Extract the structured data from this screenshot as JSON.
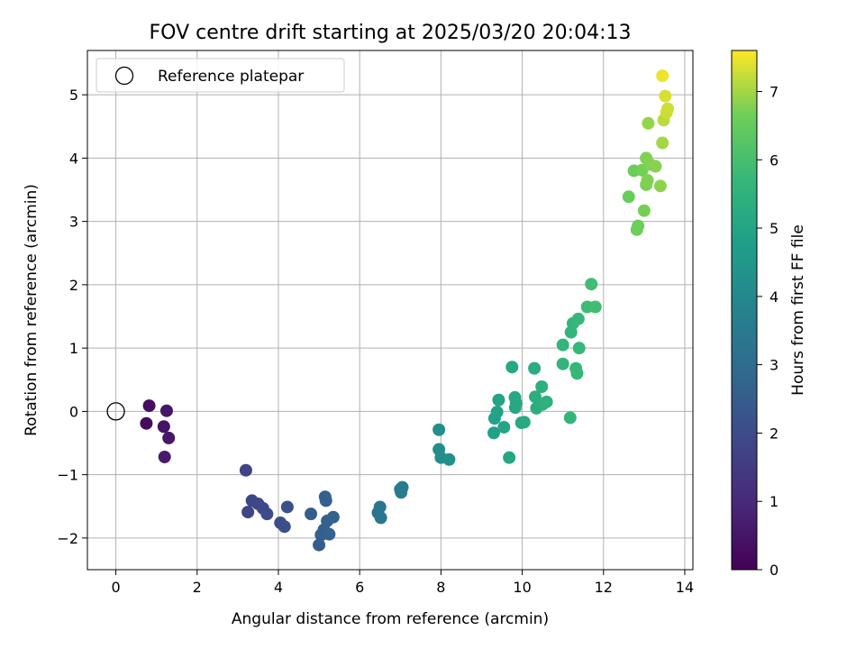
{
  "chart_data": {
    "type": "scatter",
    "title": "FOV centre drift starting at 2025/03/20 20:04:13",
    "xlabel": "Angular distance from reference (arcmin)",
    "ylabel": "Rotation from reference (arcmin)",
    "xlim": [
      -0.7,
      14.2
    ],
    "ylim": [
      -2.5,
      5.7
    ],
    "xticks": [
      "0",
      "2",
      "4",
      "6",
      "8",
      "10",
      "12",
      "14"
    ],
    "yticks": [
      "−2",
      "−1",
      "0",
      "1",
      "2",
      "3",
      "4",
      "5"
    ],
    "grid": true,
    "legend": {
      "placement": "top-left",
      "entries": [
        "Reference platepar"
      ]
    },
    "reference_point": {
      "x": 0,
      "y": 0
    },
    "colorbar": {
      "label": "Hours from first FF file",
      "range": [
        0,
        7.6
      ],
      "ticks": [
        "0",
        "1",
        "2",
        "3",
        "4",
        "5",
        "6",
        "7"
      ],
      "colormap": "viridis"
    },
    "points": [
      {
        "x": 0.82,
        "y": 0.09,
        "h": 0.3
      },
      {
        "x": 0.75,
        "y": -0.19,
        "h": 0.25
      },
      {
        "x": 1.25,
        "y": 0.01,
        "h": 0.5
      },
      {
        "x": 1.18,
        "y": -0.24,
        "h": 0.45
      },
      {
        "x": 1.3,
        "y": -0.42,
        "h": 0.55
      },
      {
        "x": 1.2,
        "y": -0.72,
        "h": 0.6
      },
      {
        "x": 3.2,
        "y": -0.93,
        "h": 1.7
      },
      {
        "x": 3.35,
        "y": -1.41,
        "h": 1.8
      },
      {
        "x": 3.5,
        "y": -1.46,
        "h": 1.85
      },
      {
        "x": 3.62,
        "y": -1.53,
        "h": 1.9
      },
      {
        "x": 3.25,
        "y": -1.59,
        "h": 1.75
      },
      {
        "x": 3.72,
        "y": -1.62,
        "h": 1.95
      },
      {
        "x": 4.05,
        "y": -1.76,
        "h": 2.05
      },
      {
        "x": 4.15,
        "y": -1.82,
        "h": 2.1
      },
      {
        "x": 4.22,
        "y": -1.51,
        "h": 2.15
      },
      {
        "x": 4.8,
        "y": -1.62,
        "h": 2.5
      },
      {
        "x": 5.15,
        "y": -1.35,
        "h": 2.6
      },
      {
        "x": 5.17,
        "y": -1.41,
        "h": 2.62
      },
      {
        "x": 5.35,
        "y": -1.67,
        "h": 2.7
      },
      {
        "x": 5.2,
        "y": -1.73,
        "h": 2.65
      },
      {
        "x": 5.12,
        "y": -1.87,
        "h": 2.6
      },
      {
        "x": 5.05,
        "y": -1.95,
        "h": 2.58
      },
      {
        "x": 5.25,
        "y": -1.94,
        "h": 2.66
      },
      {
        "x": 5.0,
        "y": -2.11,
        "h": 2.55
      },
      {
        "x": 6.45,
        "y": -1.6,
        "h": 3.3
      },
      {
        "x": 6.5,
        "y": -1.51,
        "h": 3.32
      },
      {
        "x": 6.52,
        "y": -1.68,
        "h": 3.35
      },
      {
        "x": 7.0,
        "y": -1.23,
        "h": 3.55
      },
      {
        "x": 7.05,
        "y": -1.2,
        "h": 3.57
      },
      {
        "x": 7.02,
        "y": -1.28,
        "h": 3.56
      },
      {
        "x": 7.95,
        "y": -0.29,
        "h": 4.25
      },
      {
        "x": 7.95,
        "y": -0.6,
        "h": 4.2
      },
      {
        "x": 8.0,
        "y": -0.73,
        "h": 4.22
      },
      {
        "x": 8.2,
        "y": -0.76,
        "h": 4.3
      },
      {
        "x": 9.3,
        "y": -0.34,
        "h": 4.85
      },
      {
        "x": 9.32,
        "y": -0.11,
        "h": 4.9
      },
      {
        "x": 9.38,
        "y": -0.01,
        "h": 4.92
      },
      {
        "x": 9.42,
        "y": 0.18,
        "h": 4.95
      },
      {
        "x": 9.55,
        "y": -0.25,
        "h": 5.0
      },
      {
        "x": 9.68,
        "y": -0.73,
        "h": 5.05
      },
      {
        "x": 9.75,
        "y": 0.7,
        "h": 5.1
      },
      {
        "x": 9.82,
        "y": 0.22,
        "h": 5.1
      },
      {
        "x": 9.85,
        "y": 0.13,
        "h": 5.12
      },
      {
        "x": 9.83,
        "y": 0.06,
        "h": 5.11
      },
      {
        "x": 9.98,
        "y": -0.18,
        "h": 5.15
      },
      {
        "x": 10.05,
        "y": -0.17,
        "h": 5.18
      },
      {
        "x": 10.3,
        "y": 0.68,
        "h": 5.3
      },
      {
        "x": 10.32,
        "y": 0.23,
        "h": 5.32
      },
      {
        "x": 10.35,
        "y": 0.05,
        "h": 5.33
      },
      {
        "x": 10.48,
        "y": 0.39,
        "h": 5.38
      },
      {
        "x": 10.5,
        "y": 0.11,
        "h": 5.39
      },
      {
        "x": 10.6,
        "y": 0.15,
        "h": 5.42
      },
      {
        "x": 11.0,
        "y": 1.05,
        "h": 5.6
      },
      {
        "x": 11.0,
        "y": 0.75,
        "h": 5.58
      },
      {
        "x": 11.2,
        "y": 1.25,
        "h": 5.66
      },
      {
        "x": 11.25,
        "y": 1.39,
        "h": 5.68
      },
      {
        "x": 11.38,
        "y": 1.46,
        "h": 5.72
      },
      {
        "x": 11.18,
        "y": -0.1,
        "h": 5.63
      },
      {
        "x": 11.32,
        "y": 0.68,
        "h": 5.7
      },
      {
        "x": 11.35,
        "y": 0.6,
        "h": 5.71
      },
      {
        "x": 11.4,
        "y": 1.0,
        "h": 5.73
      },
      {
        "x": 11.6,
        "y": 1.65,
        "h": 5.85
      },
      {
        "x": 11.7,
        "y": 2.01,
        "h": 5.9
      },
      {
        "x": 11.8,
        "y": 1.65,
        "h": 5.92
      },
      {
        "x": 12.62,
        "y": 3.39,
        "h": 6.55
      },
      {
        "x": 12.75,
        "y": 3.8,
        "h": 6.6
      },
      {
        "x": 12.82,
        "y": 2.87,
        "h": 6.62
      },
      {
        "x": 12.85,
        "y": 2.93,
        "h": 6.63
      },
      {
        "x": 12.95,
        "y": 3.81,
        "h": 6.68
      },
      {
        "x": 13.0,
        "y": 3.17,
        "h": 6.7
      },
      {
        "x": 13.05,
        "y": 4.0,
        "h": 6.75
      },
      {
        "x": 13.05,
        "y": 3.58,
        "h": 6.73
      },
      {
        "x": 13.08,
        "y": 3.65,
        "h": 6.76
      },
      {
        "x": 13.1,
        "y": 4.55,
        "h": 6.9
      },
      {
        "x": 13.15,
        "y": 3.9,
        "h": 6.78
      },
      {
        "x": 13.28,
        "y": 3.87,
        "h": 6.82
      },
      {
        "x": 13.4,
        "y": 3.56,
        "h": 6.85
      },
      {
        "x": 13.45,
        "y": 4.24,
        "h": 7.0
      },
      {
        "x": 13.48,
        "y": 4.6,
        "h": 7.15
      },
      {
        "x": 13.45,
        "y": 5.3,
        "h": 7.5
      },
      {
        "x": 13.52,
        "y": 4.98,
        "h": 7.35
      },
      {
        "x": 13.55,
        "y": 4.72,
        "h": 7.25
      },
      {
        "x": 13.58,
        "y": 4.78,
        "h": 7.28
      }
    ]
  }
}
